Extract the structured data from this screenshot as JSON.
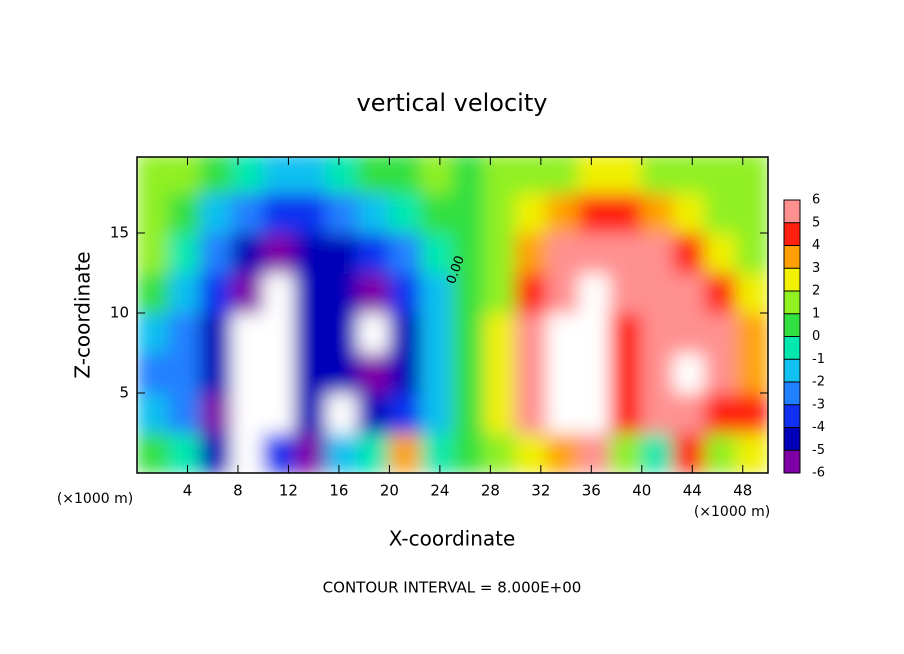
{
  "chart_data": {
    "type": "heatmap",
    "title": "vertical velocity",
    "x_label": "X-coordinate",
    "y_label": "Z-coordinate",
    "x_unit": "(×1000 m)",
    "y_unit": "(×1000 m)",
    "footer": "CONTOUR INTERVAL = 8.000E+00",
    "annotation": "0.00",
    "xlim": [
      0,
      50
    ],
    "ylim": [
      0,
      19.75
    ],
    "xticks": [
      4,
      8,
      12,
      16,
      20,
      24,
      28,
      32,
      36,
      40,
      44,
      48
    ],
    "yticks": [
      5,
      10,
      15
    ],
    "x_edges": [
      0,
      2.5,
      5,
      7.5,
      10,
      12.5,
      15,
      17.5,
      20,
      22.5,
      25,
      27.5,
      30,
      32.5,
      35,
      37.5,
      40,
      42.5,
      45,
      47.5,
      50
    ],
    "y_edges": [
      0,
      2.5,
      5,
      7.5,
      10,
      12.5,
      15,
      17.5,
      20
    ],
    "z": [
      [
        0,
        -1,
        -5,
        -7,
        -4,
        -6,
        -2,
        -1,
        3,
        -1,
        0,
        1,
        2,
        3,
        5,
        1,
        -1,
        4,
        1,
        2
      ],
      [
        -2,
        -3,
        -6,
        -7,
        -7,
        -5,
        -7,
        -5,
        -4,
        -2,
        0,
        2,
        5,
        7,
        7,
        4,
        5,
        6,
        4,
        4
      ],
      [
        -3,
        -3,
        -5,
        -7,
        -7,
        -5,
        -5,
        -6,
        -5,
        -2,
        0,
        2,
        6,
        7,
        7,
        4,
        6,
        7,
        5,
        3
      ],
      [
        -2,
        -3,
        -5,
        -7,
        -7,
        -5,
        -5,
        -7,
        -5,
        -2,
        0,
        2,
        5,
        7,
        7,
        4,
        5,
        6,
        5,
        3
      ],
      [
        0,
        -2,
        -4,
        -6,
        -7,
        -5,
        -5,
        -6,
        -4,
        -2,
        0,
        1,
        4,
        6,
        7,
        5,
        5,
        6,
        4,
        2
      ],
      [
        1,
        -1,
        -3,
        -5,
        -6,
        -5,
        -5,
        -4,
        -3,
        -1,
        0,
        1,
        3,
        5,
        6,
        5,
        5,
        4,
        2,
        1
      ],
      [
        1,
        0,
        -2,
        -3,
        -4,
        -4,
        -3,
        -2,
        -1,
        0,
        0,
        1,
        2,
        3,
        4,
        4,
        3,
        2,
        1,
        1
      ],
      [
        1,
        1,
        0,
        -1,
        -2,
        -2,
        -1,
        0,
        0,
        1,
        0,
        1,
        1,
        1,
        2,
        2,
        1,
        1,
        1,
        1
      ]
    ],
    "clim": [
      -6,
      6
    ],
    "cticks": [
      -6,
      -5,
      -4,
      -3,
      -2,
      -1,
      0,
      1,
      2,
      3,
      4,
      5,
      6
    ],
    "colors": [
      "#8000a8",
      "#0000b8",
      "#1030f0",
      "#2080ff",
      "#10c0f0",
      "#00e8b0",
      "#30e040",
      "#90f020",
      "#f0f000",
      "#ffa000",
      "#ff2010",
      "#ff9090"
    ],
    "out_of_range_color": "#ffffff"
  }
}
